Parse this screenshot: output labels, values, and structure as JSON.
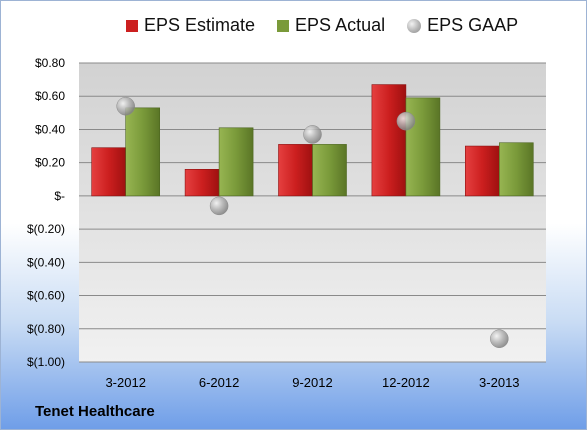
{
  "company": "Tenet Healthcare",
  "colors": {
    "estimate": "#cc1f1f",
    "actual": "#7a9a3a",
    "gaap": "#a8a8a8"
  },
  "chart_data": {
    "type": "bar",
    "categories": [
      "3-2012",
      "6-2012",
      "9-2012",
      "12-2012",
      "3-2013"
    ],
    "series": [
      {
        "name": "EPS Estimate",
        "kind": "bar",
        "values": [
          0.29,
          0.16,
          0.31,
          0.67,
          0.3
        ]
      },
      {
        "name": "EPS Actual",
        "kind": "bar",
        "values": [
          0.53,
          0.41,
          0.31,
          0.59,
          0.32
        ]
      },
      {
        "name": "EPS GAAP",
        "kind": "marker",
        "values": [
          0.54,
          -0.06,
          0.37,
          0.45,
          -0.86
        ]
      }
    ],
    "ylim": [
      -1.0,
      0.8
    ],
    "yticks": [
      0.8,
      0.6,
      0.4,
      0.2,
      0,
      -0.2,
      -0.4,
      -0.6,
      -0.8,
      -1.0
    ],
    "ytick_labels": [
      "$0.80",
      "$0.60",
      "$0.40",
      "$0.20",
      "$-",
      "$(0.20)",
      "$(0.40)",
      "$(0.60)",
      "$(0.80)",
      "$(1.00)"
    ],
    "grid": true,
    "legend_position": "top"
  }
}
